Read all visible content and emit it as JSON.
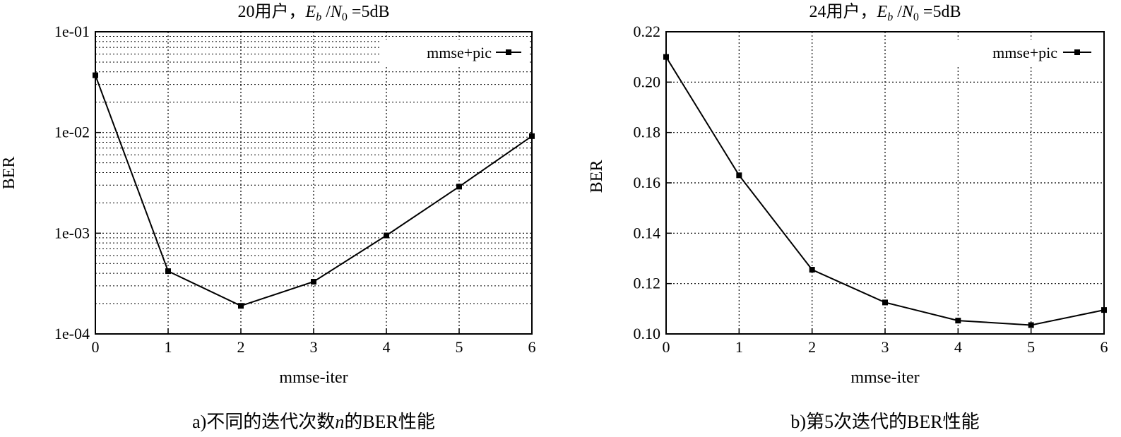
{
  "chart_data": [
    {
      "type": "line",
      "title": "20用户，E_b /N_0 =5dB",
      "title_parts": {
        "prefix": "20用户，",
        "e": "E",
        "e_sub": "b",
        "sep": " /",
        "n": "N",
        "n_sub": "0",
        "suffix": " =5dB"
      },
      "xlabel": "mmse-iter",
      "ylabel": "BER",
      "yscale": "log",
      "xlim": [
        0,
        6
      ],
      "ylim": [
        0.0001,
        0.1
      ],
      "xticks": [
        "0",
        "1",
        "2",
        "3",
        "4",
        "5",
        "6"
      ],
      "ytick_values": [
        0.0001,
        0.001,
        0.01,
        0.1
      ],
      "ytick_labels": [
        "1e-04",
        "1e-03",
        "1e-02",
        "1e-01"
      ],
      "grid": true,
      "legend_position": "top-right",
      "series": [
        {
          "name": "mmse+pic",
          "x": [
            0,
            1,
            2,
            3,
            4,
            5,
            6
          ],
          "y": [
            0.037,
            0.00042,
            0.00019,
            0.00033,
            0.00095,
            0.0029,
            0.0092
          ]
        }
      ],
      "caption": "a)不同的迭代次数n的BER性能",
      "caption_parts": {
        "prefix": "a)不同的迭代次数",
        "italic": "n",
        "suffix": "的BER性能"
      }
    },
    {
      "type": "line",
      "title": "24用户，E_b /N_0 =5dB",
      "title_parts": {
        "prefix": "24用户，",
        "e": "E",
        "e_sub": "b",
        "sep": " /",
        "n": "N",
        "n_sub": "0",
        "suffix": " =5dB"
      },
      "xlabel": "mmse-iter",
      "ylabel": "BER",
      "yscale": "linear",
      "xlim": [
        0,
        6
      ],
      "ylim": [
        0.1,
        0.22
      ],
      "xticks": [
        "0",
        "1",
        "2",
        "3",
        "4",
        "5",
        "6"
      ],
      "ytick_values": [
        0.1,
        0.12,
        0.14,
        0.16,
        0.18,
        0.2,
        0.22
      ],
      "ytick_labels": [
        "0.10",
        "0.12",
        "0.14",
        "0.16",
        "0.18",
        "0.20",
        "0.22"
      ],
      "grid": true,
      "legend_position": "top-right",
      "series": [
        {
          "name": "mmse+pic",
          "x": [
            0,
            1,
            2,
            3,
            4,
            5,
            6
          ],
          "y": [
            0.21,
            0.163,
            0.1255,
            0.1125,
            0.1053,
            0.1035,
            0.1095
          ]
        }
      ],
      "caption": "b)第5次迭代的BER性能"
    }
  ]
}
